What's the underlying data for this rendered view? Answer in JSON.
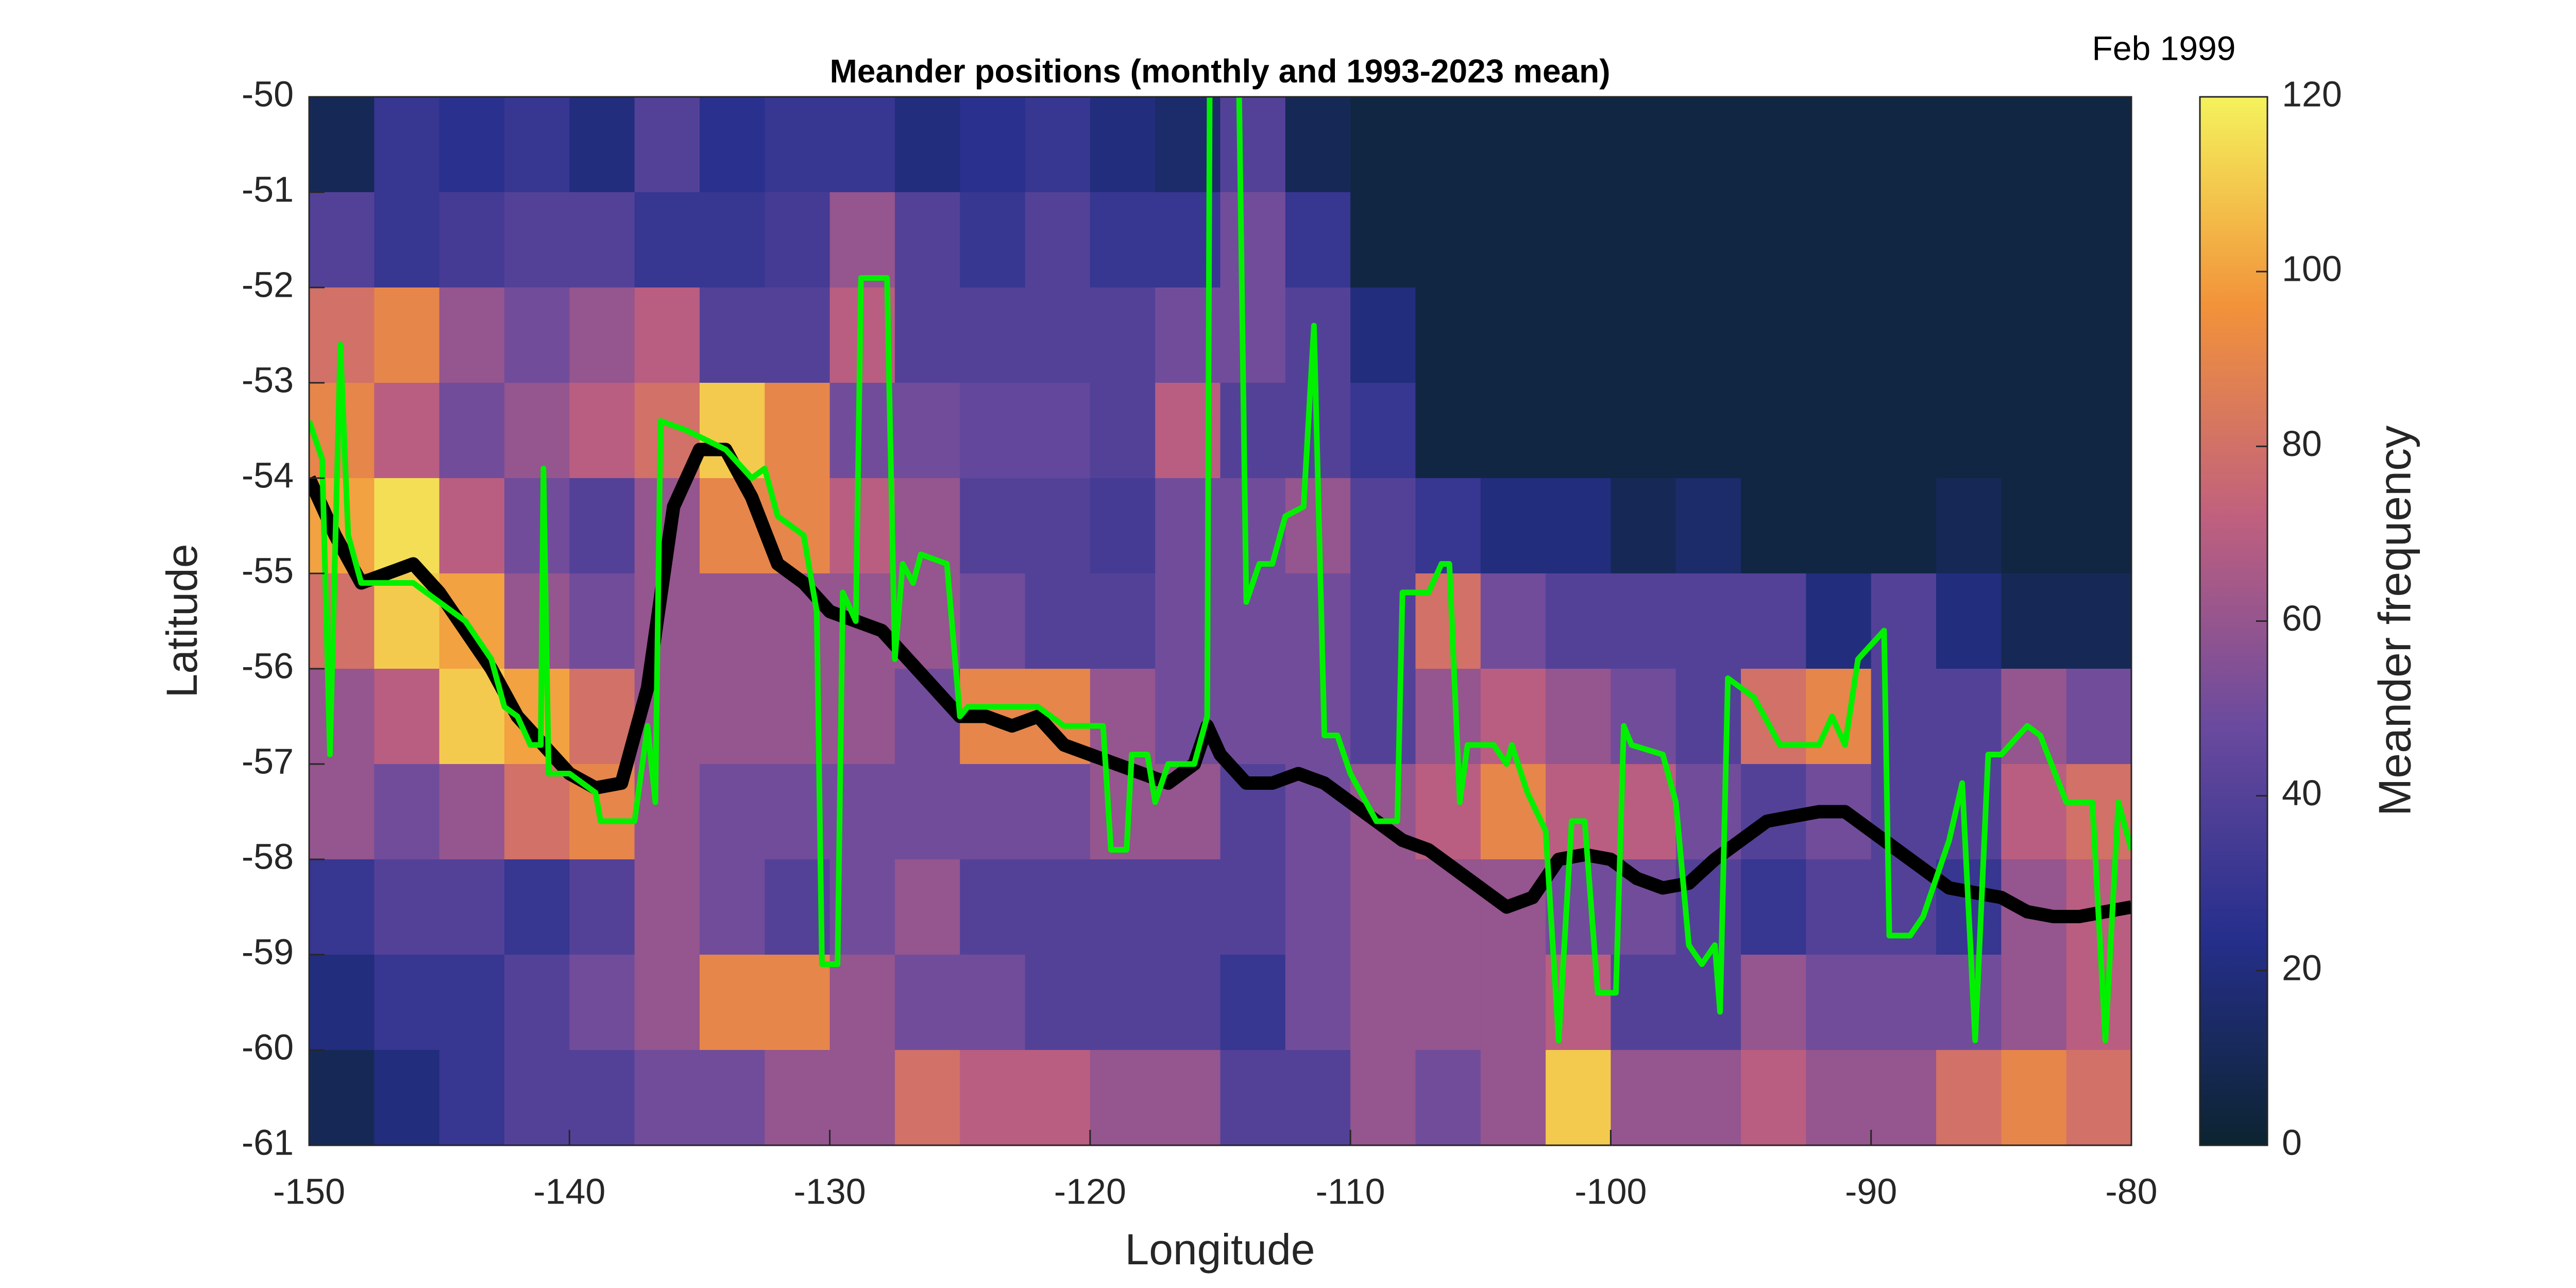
{
  "chart_data": {
    "type": "heatmap",
    "title": "Meander positions (monthly and 1993-2023 mean)",
    "annotation": "Feb 1999",
    "xlabel": "Longitude",
    "ylabel": "Latitude",
    "colorbar_label": "Meander frequency",
    "xlim": [
      -150,
      -80
    ],
    "ylim": [
      -61,
      -50
    ],
    "xticks": [
      -150,
      -140,
      -130,
      -120,
      -110,
      -100,
      -90,
      -80
    ],
    "yticks": [
      -50,
      -51,
      -52,
      -53,
      -54,
      -55,
      -56,
      -57,
      -58,
      -59,
      -60,
      -61
    ],
    "clim": [
      0,
      120
    ],
    "cticks": [
      0,
      20,
      40,
      60,
      80,
      100,
      120
    ],
    "colormap": [
      "#0b2430",
      "#262f8c",
      "#6a4a9e",
      "#c0607e",
      "#f2923a",
      "#f4f25c"
    ],
    "x_bins": [
      -150,
      -147.5,
      -145,
      -142.5,
      -140,
      -137.5,
      -135,
      -132.5,
      -130,
      -127.5,
      -125,
      -122.5,
      -120,
      -117.5,
      -115,
      -112.5,
      -110,
      -107.5,
      -105,
      -102.5,
      -100,
      -97.5,
      -95,
      -92.5,
      -90,
      -87.5,
      -85,
      -82.5,
      -80
    ],
    "y_bins": [
      -50,
      -51,
      -52,
      -53,
      -54,
      -55,
      -56,
      -57,
      -58,
      -59,
      -60,
      -61
    ],
    "z": [
      [
        10,
        30,
        25,
        30,
        20,
        40,
        25,
        30,
        30,
        20,
        25,
        30,
        20,
        15,
        40,
        10,
        5,
        5,
        5,
        5,
        5,
        5,
        5,
        5,
        5,
        5,
        5,
        5
      ],
      [
        40,
        30,
        35,
        40,
        40,
        30,
        30,
        35,
        60,
        40,
        30,
        40,
        30,
        30,
        50,
        30,
        5,
        5,
        5,
        5,
        5,
        5,
        5,
        5,
        5,
        5,
        5,
        5
      ],
      [
        80,
        90,
        60,
        50,
        60,
        70,
        40,
        40,
        70,
        40,
        40,
        40,
        40,
        50,
        50,
        40,
        20,
        5,
        5,
        5,
        5,
        5,
        5,
        5,
        5,
        5,
        5,
        5
      ],
      [
        90,
        70,
        50,
        60,
        70,
        80,
        110,
        90,
        50,
        50,
        45,
        45,
        40,
        70,
        40,
        40,
        30,
        5,
        5,
        5,
        5,
        5,
        5,
        5,
        5,
        5,
        5,
        5
      ],
      [
        100,
        115,
        70,
        50,
        40,
        60,
        90,
        90,
        70,
        60,
        40,
        40,
        35,
        50,
        50,
        60,
        40,
        30,
        20,
        20,
        10,
        15,
        5,
        5,
        5,
        10,
        5,
        5
      ],
      [
        80,
        110,
        100,
        60,
        50,
        60,
        60,
        60,
        60,
        60,
        50,
        40,
        40,
        50,
        50,
        50,
        40,
        80,
        50,
        40,
        40,
        40,
        40,
        20,
        40,
        20,
        10,
        10
      ],
      [
        60,
        70,
        110,
        100,
        80,
        60,
        60,
        60,
        60,
        50,
        90,
        90,
        60,
        50,
        50,
        50,
        40,
        60,
        70,
        60,
        50,
        40,
        80,
        90,
        40,
        40,
        60,
        50
      ],
      [
        60,
        50,
        60,
        80,
        90,
        60,
        50,
        50,
        50,
        50,
        50,
        50,
        60,
        60,
        40,
        50,
        60,
        70,
        90,
        70,
        70,
        50,
        40,
        50,
        40,
        40,
        70,
        80
      ],
      [
        30,
        40,
        40,
        30,
        40,
        60,
        50,
        40,
        50,
        60,
        40,
        40,
        40,
        40,
        40,
        50,
        60,
        60,
        60,
        50,
        50,
        40,
        30,
        40,
        40,
        30,
        60,
        70
      ],
      [
        20,
        30,
        30,
        40,
        50,
        60,
        90,
        90,
        60,
        50,
        50,
        40,
        40,
        40,
        30,
        50,
        60,
        60,
        60,
        70,
        40,
        40,
        60,
        50,
        50,
        50,
        60,
        70
      ],
      [
        10,
        20,
        30,
        40,
        40,
        50,
        50,
        60,
        60,
        80,
        70,
        70,
        60,
        60,
        40,
        40,
        60,
        50,
        60,
        110,
        60,
        60,
        70,
        60,
        60,
        80,
        90,
        80
      ]
    ],
    "series": [
      {
        "color": "#000000",
        "x": [
          -150,
          -149,
          -148,
          -147,
          -146,
          -145,
          -144,
          -143,
          -142,
          -141,
          -140,
          -139,
          -138,
          -137,
          -136,
          -135,
          -134,
          -133,
          -132,
          -131,
          -130,
          -129,
          -128,
          -127,
          -126,
          -125,
          -124,
          -123,
          -122,
          -121,
          -120,
          -119,
          -118,
          -117,
          -116,
          -115.5,
          -115,
          -114,
          -113,
          -112,
          -111,
          -110,
          -109,
          -108,
          -107,
          -106,
          -105,
          -104,
          -103,
          -102,
          -101,
          -100,
          -99,
          -98,
          -97,
          -96,
          -95,
          -94,
          -93,
          -92,
          -91,
          -90,
          -89,
          -88,
          -87,
          -86,
          -85,
          -84,
          -83,
          -82,
          -81,
          -80
        ],
        "values": [
          -54,
          -54.6,
          -55.1,
          -55,
          -54.9,
          -55.2,
          -55.6,
          -56,
          -56.5,
          -56.8,
          -57.1,
          -57.25,
          -57.2,
          -56.2,
          -54.3,
          -53.7,
          -53.7,
          -54.2,
          -54.9,
          -55.1,
          -55.4,
          -55.5,
          -55.6,
          -55.9,
          -56.2,
          -56.5,
          -56.5,
          -56.6,
          -56.5,
          -56.8,
          -56.9,
          -57,
          -57.1,
          -57.2,
          -57,
          -56.6,
          -56.9,
          -57.2,
          -57.2,
          -57.1,
          -57.2,
          -57.4,
          -57.6,
          -57.8,
          -57.9,
          -58.1,
          -58.3,
          -58.5,
          -58.4,
          -58,
          -57.95,
          -58,
          -58.2,
          -58.3,
          -58.25,
          -58,
          -57.8,
          -57.6,
          -57.55,
          -57.5,
          -57.5,
          -57.7,
          -57.9,
          -58.1,
          -58.3,
          -58.35,
          -58.4,
          -58.55,
          -58.6,
          -58.6,
          -58.55,
          -58.5
        ]
      },
      {
        "color": "#00f000",
        "x": [
          -150,
          -149.5,
          -149.2,
          -148.8,
          -148.5,
          -148,
          -146,
          -145,
          -144,
          -143,
          -142.5,
          -142,
          -141.5,
          -141.1,
          -141,
          -140.8,
          -140,
          -139,
          -138.8,
          -137.5,
          -137,
          -136.7,
          -136.5,
          -135.5,
          -134,
          -133,
          -132.5,
          -132,
          -131,
          -130.5,
          -130.3,
          -129.7,
          -129.5,
          -129,
          -128.8,
          -127.8,
          -127.5,
          -127.2,
          -126.8,
          -126.5,
          -125.5,
          -125,
          -124.7,
          -122,
          -121,
          -119.5,
          -119.2,
          -118.6,
          -118.4,
          -117.8,
          -117.5,
          -117,
          -116,
          -115.5,
          -115.4,
          -114.3,
          -114,
          -113.5,
          -113,
          -112.5,
          -111.8,
          -111.4,
          -111,
          -110.5,
          -110,
          -109,
          -108.2,
          -108,
          -107,
          -106.5,
          -106.2,
          -105.8,
          -105.5,
          -104.5,
          -104,
          -103.8,
          -103.2,
          -102.5,
          -102,
          -101.5,
          -101,
          -100.5,
          -99.8,
          -99.5,
          -99.2,
          -98,
          -97.5,
          -97,
          -96.5,
          -96,
          -95.8,
          -95.5,
          -94.5,
          -93.5,
          -92,
          -91.5,
          -91,
          -90.5,
          -89.5,
          -89.3,
          -88.5,
          -88,
          -87,
          -86.5,
          -86,
          -85.5,
          -85,
          -84,
          -83.5,
          -82.5,
          -81.5,
          -81,
          -80.5,
          -80
        ],
        "values": [
          -53.4,
          -53.8,
          -56.9,
          -52.6,
          -54.6,
          -55.1,
          -55.1,
          -55.3,
          -55.5,
          -55.9,
          -56.4,
          -56.5,
          -56.8,
          -56.8,
          -53.9,
          -57.1,
          -57.1,
          -57.3,
          -57.6,
          -57.6,
          -56.6,
          -57.4,
          -53.4,
          -53.5,
          -53.7,
          -54,
          -53.9,
          -54.4,
          -54.6,
          -55.4,
          -59.1,
          -59.1,
          -55.2,
          -55.5,
          -51.9,
          -51.9,
          -55.9,
          -54.9,
          -55.1,
          -54.8,
          -54.9,
          -56.5,
          -56.4,
          -56.4,
          -56.6,
          -56.6,
          -57.9,
          -57.9,
          -56.9,
          -56.9,
          -57.4,
          -57,
          -57,
          -56.5,
          -49.5,
          -49.5,
          -55.3,
          -54.9,
          -54.9,
          -54.4,
          -54.3,
          -52.4,
          -56.7,
          -56.7,
          -57.1,
          -57.6,
          -57.6,
          -55.2,
          -55.2,
          -54.9,
          -54.9,
          -57.4,
          -56.8,
          -56.8,
          -57,
          -56.8,
          -57.3,
          -57.7,
          -59.9,
          -57.6,
          -57.6,
          -59.4,
          -59.4,
          -56.6,
          -56.8,
          -56.9,
          -57.4,
          -58.9,
          -59.1,
          -58.9,
          -59.6,
          -56.1,
          -56.3,
          -56.8,
          -56.8,
          -56.5,
          -56.8,
          -55.9,
          -55.6,
          -58.8,
          -58.8,
          -58.6,
          -57.8,
          -57.2,
          -59.9,
          -56.9,
          -56.9,
          -56.6,
          -56.7,
          -57.4,
          -57.4,
          -59.9,
          -57.4,
          -57.9
        ]
      }
    ]
  }
}
